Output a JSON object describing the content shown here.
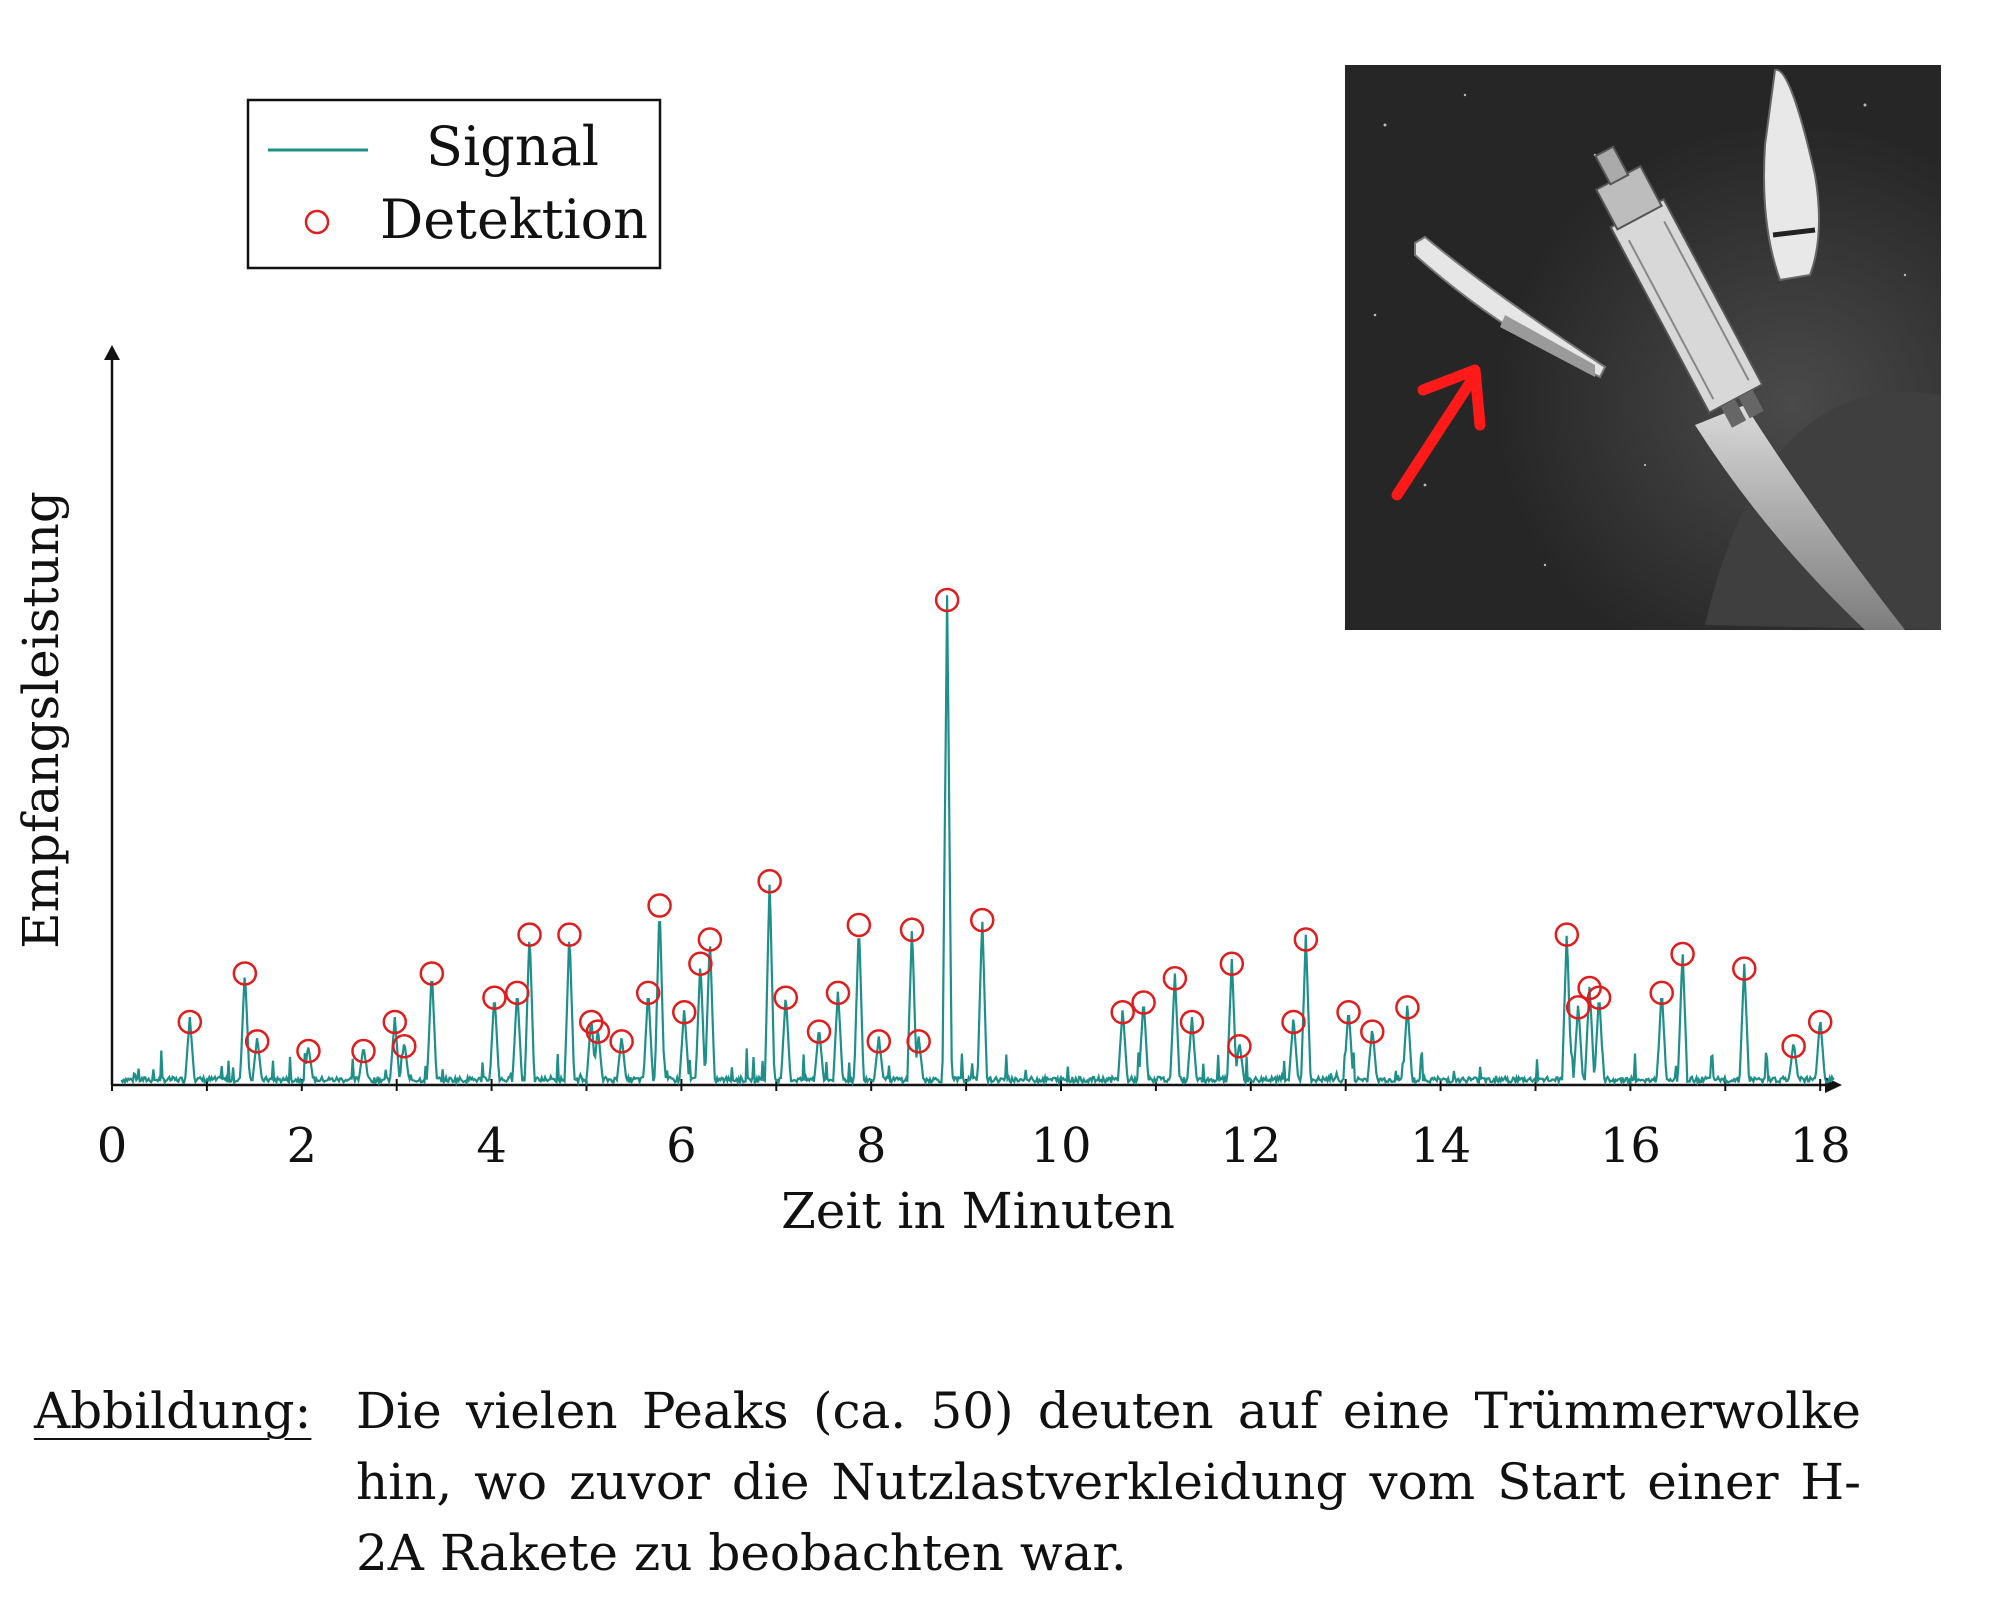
{
  "chart_data": {
    "type": "line",
    "xlabel": "Zeit in Minuten",
    "ylabel": "Empfangsleistung",
    "xlim": [
      0,
      18.5
    ],
    "ylim": [
      0,
      1.0
    ],
    "x_ticks": [
      "0",
      "2",
      "4",
      "6",
      "8",
      "10",
      "12",
      "14",
      "16",
      "18"
    ],
    "legend": {
      "placement": "top-left",
      "entries": [
        "Signal",
        "Detektion"
      ]
    },
    "grid": false,
    "series": [
      {
        "name": "Signal",
        "color": "#1f8f8a",
        "peaks": [
          [
            0.82,
            0.13
          ],
          [
            1.4,
            0.23
          ],
          [
            1.53,
            0.09
          ],
          [
            2.07,
            0.07
          ],
          [
            2.65,
            0.07
          ],
          [
            2.98,
            0.13
          ],
          [
            3.08,
            0.08
          ],
          [
            3.37,
            0.23
          ],
          [
            4.03,
            0.18
          ],
          [
            4.27,
            0.19
          ],
          [
            4.4,
            0.31
          ],
          [
            4.82,
            0.31
          ],
          [
            5.05,
            0.13
          ],
          [
            5.12,
            0.11
          ],
          [
            5.37,
            0.09
          ],
          [
            5.65,
            0.19
          ],
          [
            5.77,
            0.37
          ],
          [
            6.03,
            0.15
          ],
          [
            6.2,
            0.25
          ],
          [
            6.3,
            0.3
          ],
          [
            6.93,
            0.42
          ],
          [
            7.1,
            0.18
          ],
          [
            7.45,
            0.11
          ],
          [
            7.65,
            0.19
          ],
          [
            7.87,
            0.33
          ],
          [
            8.08,
            0.09
          ],
          [
            8.43,
            0.32
          ],
          [
            8.5,
            0.09
          ],
          [
            8.8,
            1.0
          ],
          [
            9.17,
            0.34
          ],
          [
            10.65,
            0.15
          ],
          [
            10.87,
            0.17
          ],
          [
            11.2,
            0.22
          ],
          [
            11.38,
            0.13
          ],
          [
            11.8,
            0.25
          ],
          [
            11.88,
            0.08
          ],
          [
            12.45,
            0.13
          ],
          [
            12.58,
            0.3
          ],
          [
            13.03,
            0.15
          ],
          [
            13.28,
            0.11
          ],
          [
            13.65,
            0.16
          ],
          [
            15.33,
            0.31
          ],
          [
            15.45,
            0.16
          ],
          [
            15.57,
            0.2
          ],
          [
            15.67,
            0.18
          ],
          [
            16.33,
            0.19
          ],
          [
            16.55,
            0.27
          ],
          [
            17.2,
            0.24
          ],
          [
            17.72,
            0.08
          ],
          [
            18.0,
            0.13
          ]
        ]
      },
      {
        "name": "Detektion",
        "color": "#e01c1c",
        "points": [
          [
            0.82,
            0.13
          ],
          [
            1.4,
            0.23
          ],
          [
            1.53,
            0.09
          ],
          [
            2.07,
            0.07
          ],
          [
            2.65,
            0.07
          ],
          [
            2.98,
            0.13
          ],
          [
            3.08,
            0.08
          ],
          [
            3.37,
            0.23
          ],
          [
            4.03,
            0.18
          ],
          [
            4.27,
            0.19
          ],
          [
            4.4,
            0.31
          ],
          [
            4.82,
            0.31
          ],
          [
            5.05,
            0.13
          ],
          [
            5.12,
            0.11
          ],
          [
            5.37,
            0.09
          ],
          [
            5.65,
            0.19
          ],
          [
            5.77,
            0.37
          ],
          [
            6.03,
            0.15
          ],
          [
            6.2,
            0.25
          ],
          [
            6.3,
            0.3
          ],
          [
            6.93,
            0.42
          ],
          [
            7.1,
            0.18
          ],
          [
            7.45,
            0.11
          ],
          [
            7.65,
            0.19
          ],
          [
            7.87,
            0.33
          ],
          [
            8.08,
            0.09
          ],
          [
            8.43,
            0.32
          ],
          [
            8.5,
            0.09
          ],
          [
            8.8,
            1.0
          ],
          [
            9.17,
            0.34
          ],
          [
            10.65,
            0.15
          ],
          [
            10.87,
            0.17
          ],
          [
            11.2,
            0.22
          ],
          [
            11.38,
            0.13
          ],
          [
            11.8,
            0.25
          ],
          [
            11.88,
            0.08
          ],
          [
            12.45,
            0.13
          ],
          [
            12.58,
            0.3
          ],
          [
            13.03,
            0.15
          ],
          [
            13.28,
            0.11
          ],
          [
            13.65,
            0.16
          ],
          [
            15.33,
            0.31
          ],
          [
            15.45,
            0.16
          ],
          [
            15.57,
            0.2
          ],
          [
            15.67,
            0.18
          ],
          [
            16.33,
            0.19
          ],
          [
            16.55,
            0.27
          ],
          [
            17.2,
            0.24
          ],
          [
            17.72,
            0.08
          ],
          [
            18.0,
            0.13
          ]
        ]
      }
    ]
  },
  "caption": {
    "label": "Abbildung:",
    "text": "Die vielen Peaks (ca. 50) deuten auf eine Trümmerwolke hin, wo zuvor die Nutzlastverkleidung vom Start einer H-2A Rakete zu beobachten war."
  },
  "photo": {
    "description_icon": "rocket-fairing-separation-icon",
    "arrow_color": "#ff1a1a"
  }
}
